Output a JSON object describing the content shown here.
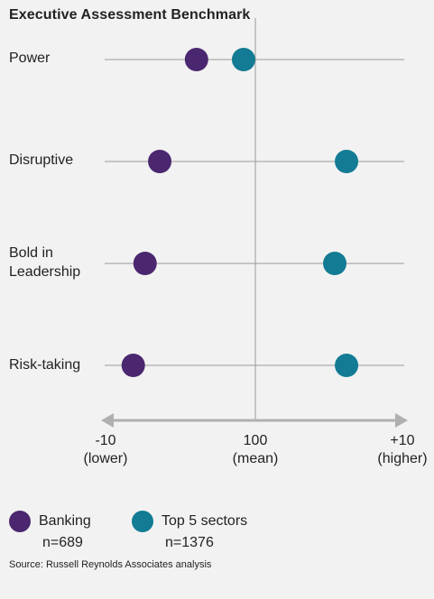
{
  "title": "Executive Assessment Benchmark",
  "colors": {
    "banking": "#4b2770",
    "top5": "#137b94",
    "line": "#9a9a9a",
    "arrow": "#b0b0b0"
  },
  "chart_data": {
    "type": "scatter",
    "title": "Executive Assessment Benchmark",
    "categories": [
      "Power",
      "Disruptive",
      "Bold in\nLeadership",
      "Risk-taking"
    ],
    "x_axis": {
      "range": [
        -10,
        10
      ],
      "ticks": [
        {
          "value": -10,
          "label": "-10",
          "sublabel": "(lower)"
        },
        {
          "value": 0,
          "label": "100",
          "sublabel": "(mean)"
        },
        {
          "value": 10,
          "label": "+10",
          "sublabel": "(higher)"
        }
      ]
    },
    "series": [
      {
        "name": "Banking",
        "n": "n=689",
        "values": [
          -4,
          -6.5,
          -7.5,
          -8.3
        ]
      },
      {
        "name": "Top 5 sectors",
        "n": "n=1376",
        "values": [
          -0.8,
          6.2,
          5.4,
          6.2
        ]
      }
    ],
    "legend_position": "bottom"
  },
  "source": "Source: Russell Reynolds Associates analysis"
}
